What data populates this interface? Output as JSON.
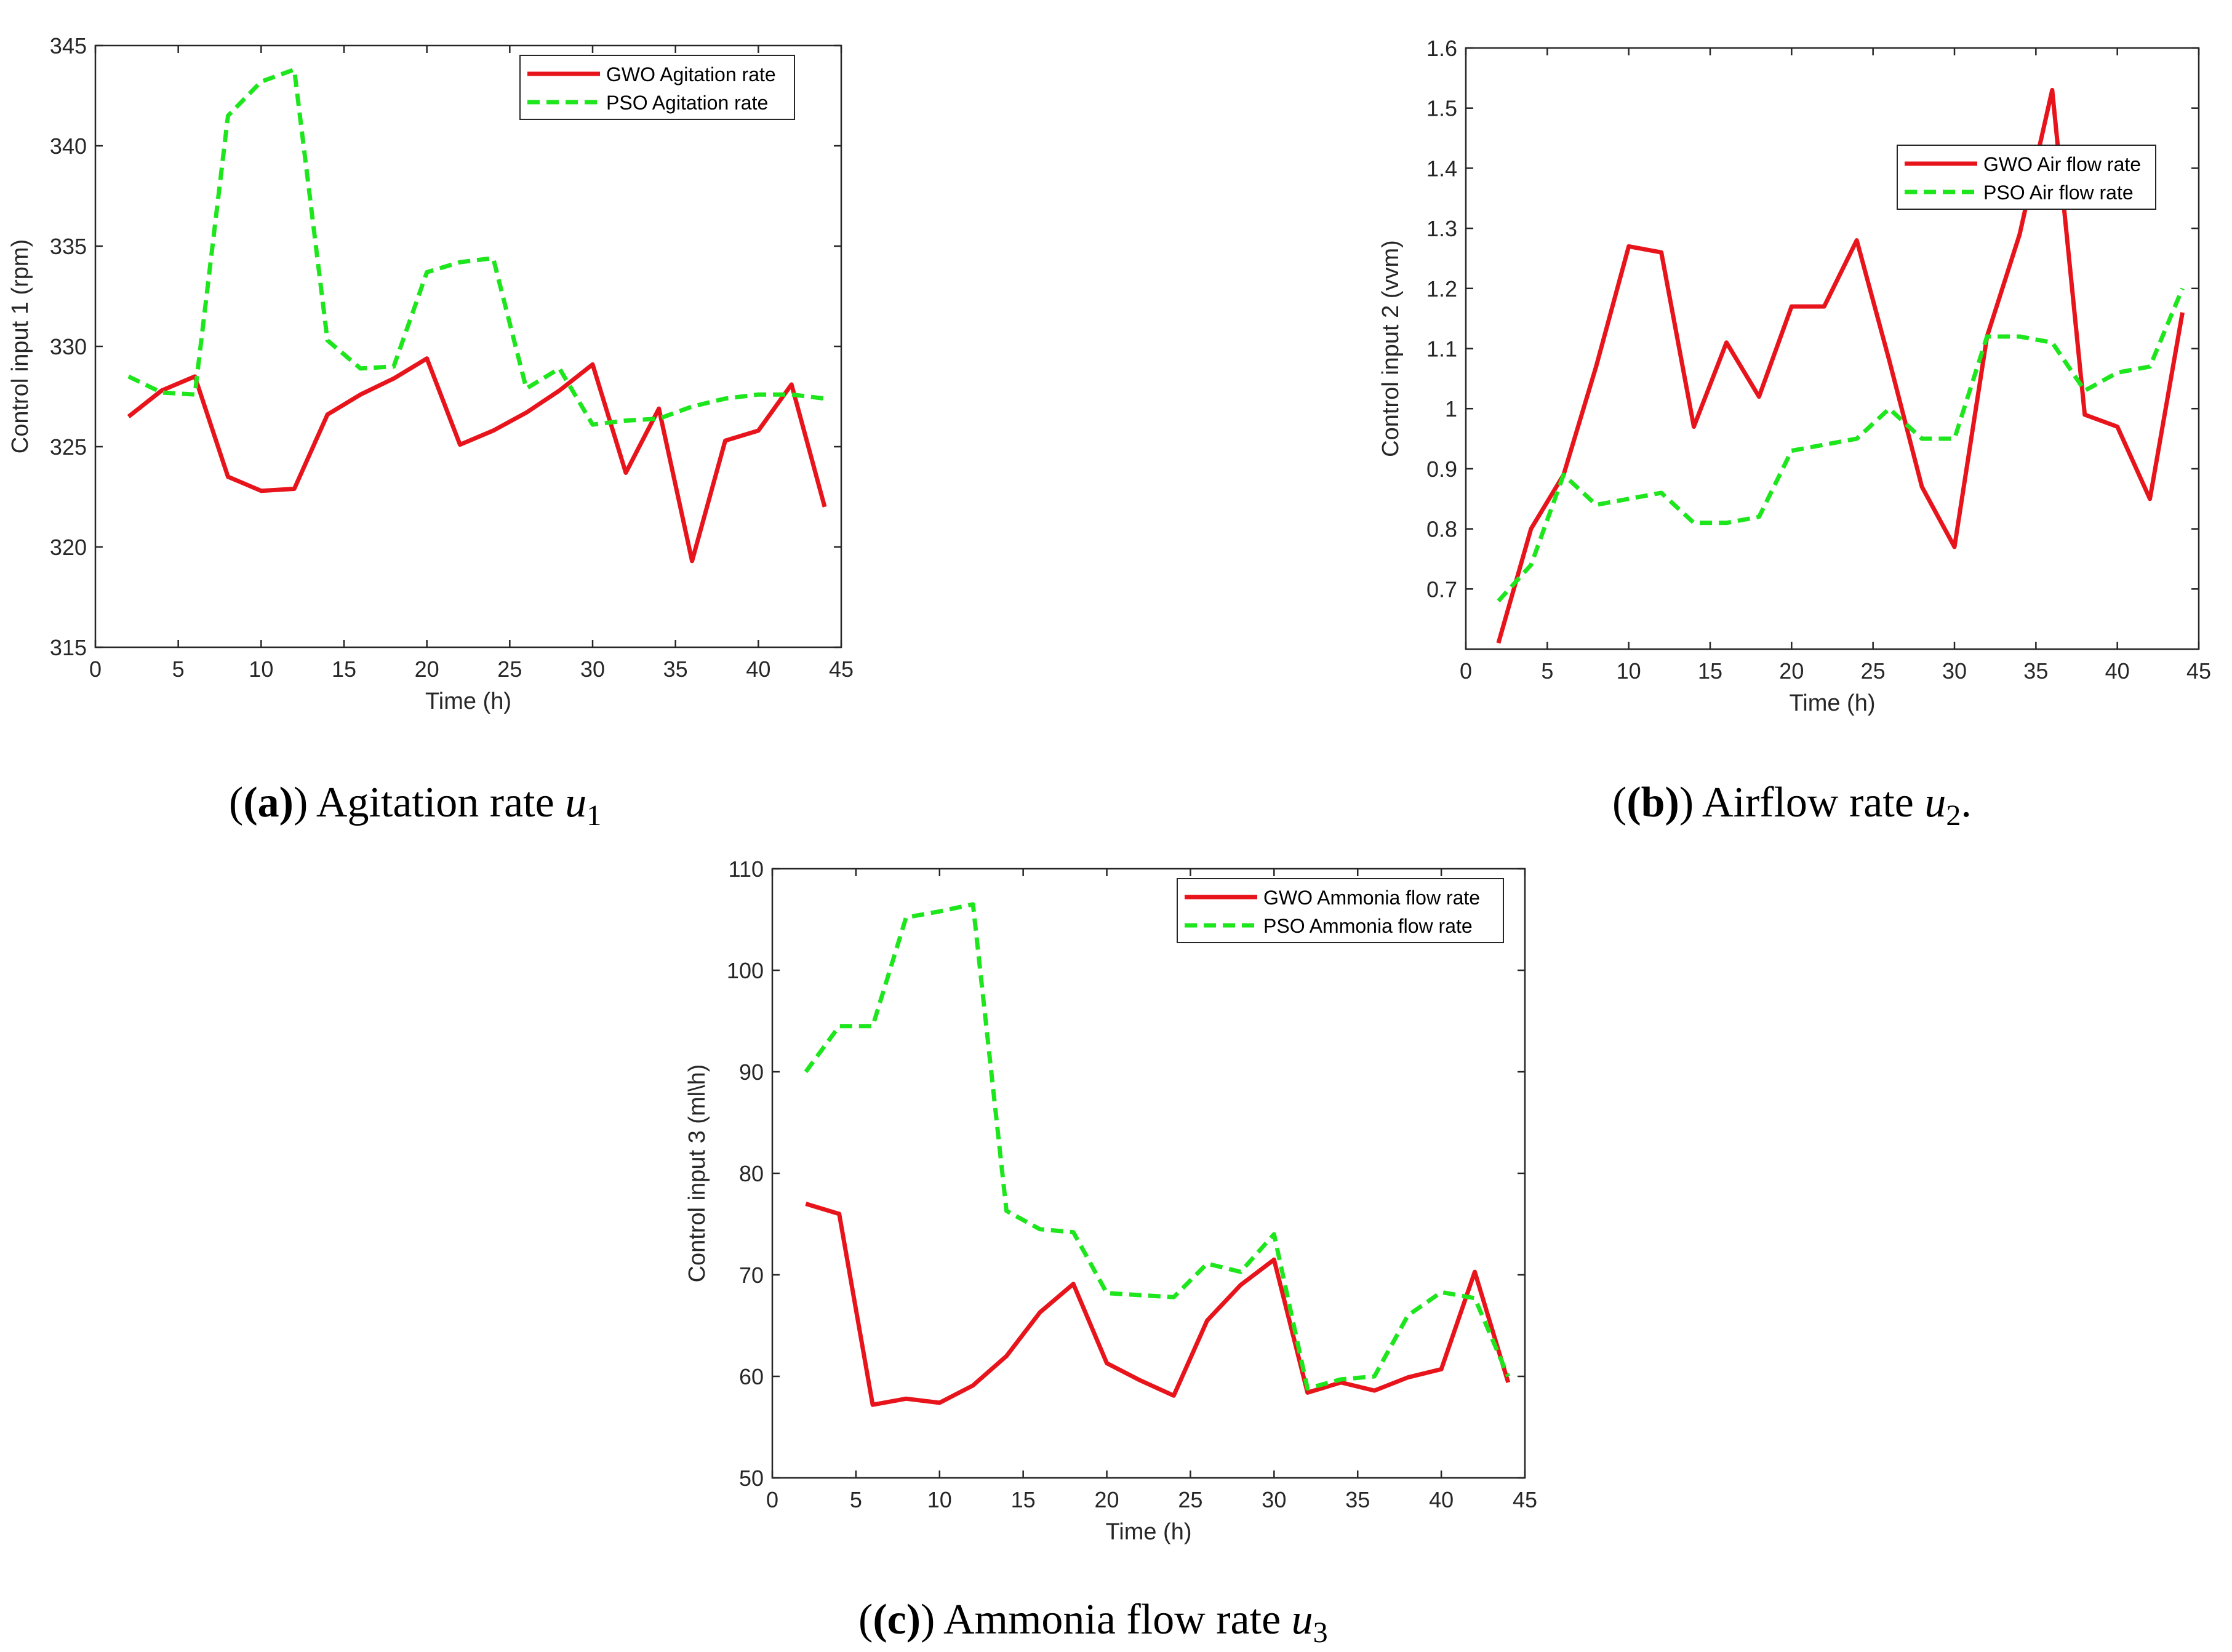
{
  "chart_data": [
    {
      "type": "line",
      "panel": "a",
      "ylabel": "Control input 1 (rpm)",
      "xlabel": "Time (h)",
      "xlim": [
        0,
        45
      ],
      "ylim": [
        315,
        345
      ],
      "xticks": [
        "0",
        "5",
        "10",
        "15",
        "20",
        "25",
        "30",
        "35",
        "40",
        "45"
      ],
      "yticks": [
        "315",
        "320",
        "325",
        "330",
        "335",
        "340",
        "345"
      ],
      "legend_position": "top-right",
      "x": [
        2,
        4,
        6,
        8,
        10,
        12,
        14,
        16,
        18,
        20,
        22,
        24,
        26,
        28,
        30,
        32,
        34,
        36,
        38,
        40,
        42,
        44
      ],
      "series": [
        {
          "name": "GWO Agitation rate",
          "color": "#e8141c",
          "style": "solid",
          "values": [
            326.5,
            327.8,
            328.5,
            323.5,
            322.8,
            322.9,
            326.6,
            327.6,
            328.4,
            329.4,
            325.1,
            325.8,
            326.7,
            327.8,
            329.1,
            323.7,
            326.9,
            319.3,
            325.3,
            325.8,
            328.1,
            322
          ]
        },
        {
          "name": "PSO Agitation rate",
          "color": "#1de61d",
          "style": "dashed",
          "values": [
            328.5,
            327.7,
            327.6,
            341.5,
            343.2,
            343.8,
            330.3,
            328.9,
            329.0,
            333.7,
            334.2,
            334.4,
            327.9,
            328.9,
            326.1,
            326.3,
            326.4,
            327.0,
            327.4,
            327.6,
            327.6,
            327.4
          ]
        }
      ],
      "caption": {
        "label": "(a)",
        "text": "Agitation rate",
        "var": "u",
        "sub": "1",
        "suffix": ""
      }
    },
    {
      "type": "line",
      "panel": "b",
      "ylabel": "Control input 2 (vvm)",
      "xlabel": "Time (h)",
      "xlim": [
        0,
        45
      ],
      "ylim": [
        0.6,
        1.6
      ],
      "xticks": [
        "0",
        "5",
        "10",
        "15",
        "20",
        "25",
        "30",
        "35",
        "40",
        "45"
      ],
      "yticks": [
        "0.7",
        "0.8",
        "0.9",
        "1",
        "1.1",
        "1.2",
        "1.3",
        "1.4",
        "1.5",
        "1.6"
      ],
      "legend_position": "top-right",
      "x": [
        2,
        4,
        6,
        8,
        10,
        12,
        14,
        16,
        18,
        20,
        22,
        24,
        26,
        28,
        30,
        32,
        34,
        36,
        38,
        40,
        42,
        44
      ],
      "series": [
        {
          "name": "GWO Air flow rate",
          "color": "#e8141c",
          "style": "solid",
          "values": [
            0.61,
            0.8,
            0.89,
            1.07,
            1.27,
            1.26,
            0.97,
            1.11,
            1.02,
            1.17,
            1.17,
            1.28,
            1.08,
            0.87,
            0.77,
            1.12,
            1.29,
            1.53,
            0.99,
            0.97,
            0.85,
            1.16
          ]
        },
        {
          "name": "PSO Air flow rate",
          "color": "#1de61d",
          "style": "dashed",
          "values": [
            0.68,
            0.74,
            0.89,
            0.84,
            0.85,
            0.86,
            0.81,
            0.81,
            0.82,
            0.93,
            0.94,
            0.95,
            1.0,
            0.95,
            0.95,
            1.12,
            1.12,
            1.11,
            1.03,
            1.06,
            1.07,
            1.2
          ]
        }
      ],
      "caption": {
        "label": "(b)",
        "text": "Airflow rate",
        "var": "u",
        "sub": "2",
        "suffix": "."
      }
    },
    {
      "type": "line",
      "panel": "c",
      "ylabel": "Control input 3 (ml\\h)",
      "xlabel": "Time (h)",
      "xlim": [
        0,
        45
      ],
      "ylim": [
        50,
        110
      ],
      "xticks": [
        "0",
        "5",
        "10",
        "15",
        "20",
        "25",
        "30",
        "35",
        "40",
        "45"
      ],
      "yticks": [
        "50",
        "60",
        "70",
        "80",
        "90",
        "100",
        "110"
      ],
      "legend_position": "top-right",
      "x": [
        2,
        4,
        6,
        8,
        10,
        12,
        14,
        16,
        18,
        20,
        22,
        24,
        26,
        28,
        30,
        32,
        34,
        36,
        38,
        40,
        42,
        44
      ],
      "series": [
        {
          "name": "GWO Ammonia flow rate",
          "color": "#e8141c",
          "style": "solid",
          "values": [
            77,
            76,
            57.2,
            57.8,
            57.4,
            59.1,
            62,
            66.3,
            69.1,
            61.3,
            59.6,
            58.1,
            65.5,
            69,
            71.5,
            58.4,
            59.4,
            58.6,
            59.9,
            60.7,
            70.3,
            59.4
          ]
        },
        {
          "name": "PSO Ammonia flow rate",
          "color": "#1de61d",
          "style": "dashed",
          "values": [
            90,
            94.5,
            94.5,
            105.2,
            105.8,
            106.5,
            76.3,
            74.5,
            74.2,
            68.2,
            68.0,
            67.8,
            71.1,
            70.3,
            74,
            58.8,
            59.7,
            60,
            66,
            68.3,
            67.7,
            60
          ]
        }
      ],
      "caption": {
        "label": "(c)",
        "text": "Ammonia flow rate",
        "var": "u",
        "sub": "3",
        "suffix": ""
      }
    }
  ]
}
